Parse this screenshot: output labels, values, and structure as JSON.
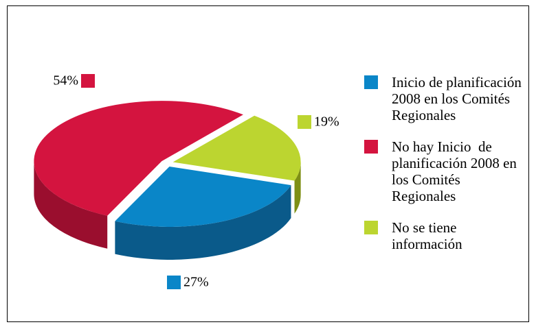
{
  "chart_data": {
    "type": "pie3d",
    "categories": [
      "Inicio de planificación 2008 en los Comités Regionales",
      "No hay Inicio  de planificación 2008 en los Comités Regionales",
      "No se tiene información"
    ],
    "values": [
      27,
      54,
      19
    ],
    "value_labels": [
      "27%",
      "54%",
      "19%"
    ],
    "colors": [
      "#0a86c8",
      "#d4143f",
      "#bcd530"
    ],
    "side_colors": [
      "#0a5a8a",
      "#9a0e2e",
      "#7e8f15"
    ]
  }
}
